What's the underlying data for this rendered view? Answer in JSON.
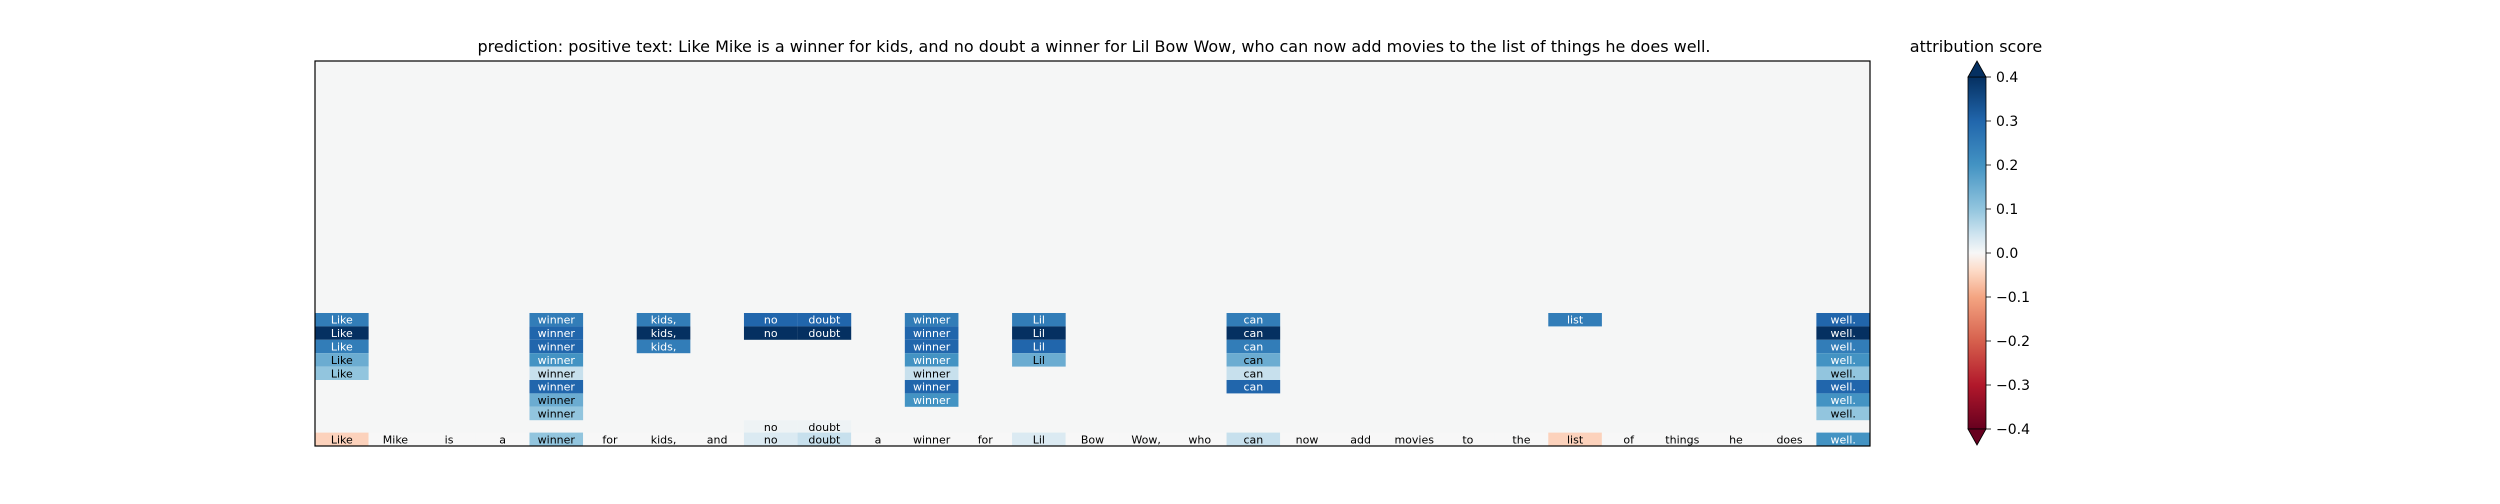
{
  "chart_data": {
    "type": "heatmap",
    "title": "prediction:  positive     text:  Like Mike is a winner for kids, and no doubt a winner for Lil Bow Wow, who can now add movies to the list of things he does well.",
    "tokens": [
      "Like",
      "Mike",
      "is",
      "a",
      "winner",
      "for",
      "kids,",
      "and",
      "no",
      "doubt",
      "a",
      "winner",
      "for",
      "Lil",
      "Bow",
      "Wow,",
      "who",
      "can",
      "now",
      "add",
      "movies",
      "to",
      "the",
      "list",
      "of",
      "things",
      "he",
      "does",
      "well."
    ],
    "bottom_row_scores": [
      -0.05,
      0,
      0,
      0,
      0.1,
      0,
      0,
      0,
      0.03,
      0.05,
      0,
      0,
      0,
      0.03,
      0,
      0,
      0,
      0.05,
      0,
      0,
      0,
      0,
      0,
      -0.05,
      0,
      0,
      0,
      0,
      0.2
    ],
    "upper_rows": [
      {
        "row": 0,
        "cells": [
          {
            "col": 0,
            "v": 0.25
          },
          {
            "col": 4,
            "v": 0.25
          },
          {
            "col": 6,
            "v": 0.25
          },
          {
            "col": 8,
            "v": 0.3
          },
          {
            "col": 9,
            "v": 0.3
          },
          {
            "col": 11,
            "v": 0.25
          },
          {
            "col": 13,
            "v": 0.25
          },
          {
            "col": 17,
            "v": 0.25
          },
          {
            "col": 23,
            "v": 0.25
          },
          {
            "col": 28,
            "v": 0.3
          }
        ]
      },
      {
        "row": 1,
        "cells": [
          {
            "col": 0,
            "v": 0.4
          },
          {
            "col": 4,
            "v": 0.3
          },
          {
            "col": 6,
            "v": 0.4
          },
          {
            "col": 8,
            "v": 0.4
          },
          {
            "col": 9,
            "v": 0.4
          },
          {
            "col": 11,
            "v": 0.3
          },
          {
            "col": 13,
            "v": 0.4
          },
          {
            "col": 17,
            "v": 0.4
          },
          {
            "col": 28,
            "v": 0.4
          }
        ]
      },
      {
        "row": 2,
        "cells": [
          {
            "col": 0,
            "v": 0.25
          },
          {
            "col": 4,
            "v": 0.3
          },
          {
            "col": 6,
            "v": 0.25
          },
          {
            "col": 11,
            "v": 0.3
          },
          {
            "col": 13,
            "v": 0.3
          },
          {
            "col": 17,
            "v": 0.25
          },
          {
            "col": 28,
            "v": 0.25
          }
        ]
      },
      {
        "row": 3,
        "cells": [
          {
            "col": 0,
            "v": 0.15
          },
          {
            "col": 4,
            "v": 0.2
          },
          {
            "col": 11,
            "v": 0.2
          },
          {
            "col": 13,
            "v": 0.15
          },
          {
            "col": 17,
            "v": 0.15
          },
          {
            "col": 28,
            "v": 0.2
          }
        ]
      },
      {
        "row": 4,
        "cells": [
          {
            "col": 0,
            "v": 0.1
          },
          {
            "col": 4,
            "v": 0.05
          },
          {
            "col": 11,
            "v": 0.05
          },
          {
            "col": 17,
            "v": 0.05
          },
          {
            "col": 28,
            "v": 0.1
          }
        ]
      },
      {
        "row": 5,
        "cells": [
          {
            "col": 4,
            "v": 0.3
          },
          {
            "col": 11,
            "v": 0.3
          },
          {
            "col": 17,
            "v": 0.3
          },
          {
            "col": 28,
            "v": 0.3
          }
        ]
      },
      {
        "row": 6,
        "cells": [
          {
            "col": 4,
            "v": 0.15
          },
          {
            "col": 11,
            "v": 0.2
          },
          {
            "col": 28,
            "v": 0.2
          }
        ]
      },
      {
        "row": 7,
        "cells": [
          {
            "col": 4,
            "v": 0.1
          },
          {
            "col": 28,
            "v": 0.1
          }
        ]
      },
      {
        "row": 8,
        "cells": [
          {
            "col": 8,
            "v": 0.01
          },
          {
            "col": 9,
            "v": 0.01
          }
        ]
      }
    ],
    "colorbar": {
      "label": "attribution score",
      "min": -0.4,
      "max": 0.4,
      "ticks": [
        0.4,
        0.3,
        0.2,
        0.1,
        0.0,
        -0.1,
        -0.2,
        -0.3,
        -0.4
      ],
      "tick_labels": [
        "0.4",
        "0.3",
        "0.2",
        "0.1",
        "0.0",
        "−0.1",
        "−0.2",
        "−0.3",
        "−0.4"
      ]
    },
    "colormap": "RdBu",
    "background_color": "#f5f6f6"
  }
}
